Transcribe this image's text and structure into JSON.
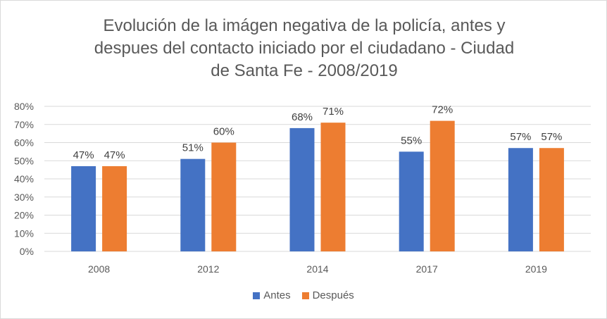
{
  "chart_data": {
    "type": "bar",
    "title": "Evolución de la imágen negativa de la policía, antes y despues del contacto iniciado por el ciudadano - Ciudad de Santa Fe - 2008/2019",
    "title_lines": [
      "Evolución de la imágen negativa de la policía, antes y",
      "despues del contacto iniciado por el ciudadano - Ciudad",
      "de Santa Fe - 2008/2019"
    ],
    "categories": [
      "2008",
      "2012",
      "2014",
      "2017",
      "2019"
    ],
    "series": [
      {
        "name": "Antes",
        "color": "#4472c4",
        "values": [
          47,
          51,
          68,
          55,
          57
        ],
        "labels": [
          "47%",
          "51%",
          "68%",
          "55%",
          "57%"
        ]
      },
      {
        "name": "Después",
        "color": "#ed7d31",
        "values": [
          47,
          60,
          71,
          72,
          57
        ],
        "labels": [
          "47%",
          "60%",
          "71%",
          "72%",
          "57%"
        ]
      }
    ],
    "ylim": [
      0,
      80
    ],
    "yticks": [
      0,
      10,
      20,
      30,
      40,
      50,
      60,
      70,
      80
    ],
    "ytick_labels": [
      "0%",
      "10%",
      "20%",
      "30%",
      "40%",
      "50%",
      "60%",
      "70%",
      "80%"
    ],
    "grid": true,
    "legend_position": "bottom"
  }
}
